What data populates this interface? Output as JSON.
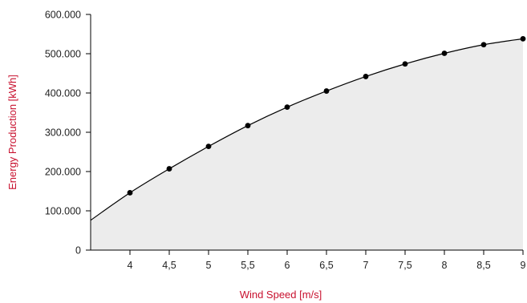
{
  "chart_data": {
    "type": "area",
    "title": "",
    "xlabel": "Wind Speed [m/s]",
    "ylabel": "Energy Production [kWh]",
    "xlim": [
      3.5,
      9
    ],
    "ylim": [
      0,
      600000
    ],
    "x_ticks": [
      "4",
      "4,5",
      "5",
      "5,5",
      "6",
      "6,5",
      "7",
      "7,5",
      "8",
      "8,5",
      "9"
    ],
    "x_tick_values": [
      4,
      4.5,
      5,
      5.5,
      6,
      6.5,
      7,
      7.5,
      8,
      8.5,
      9
    ],
    "y_ticks": [
      "0",
      "100.000",
      "200.000",
      "300.000",
      "400.000",
      "500.000",
      "600.000"
    ],
    "y_tick_values": [
      0,
      100000,
      200000,
      300000,
      400000,
      500000,
      600000
    ],
    "grid": false,
    "legend": "none",
    "series": [
      {
        "x": [
          4,
          4.5,
          5,
          5.5,
          6,
          6.5,
          7,
          7.5,
          8,
          8.5,
          9
        ],
        "values": [
          146000,
          207000,
          264000,
          317000,
          364000,
          405000,
          442000,
          474000,
          501000,
          523000,
          538000
        ]
      }
    ],
    "curve_start": {
      "x": 3.5,
      "y": 76000
    },
    "colors": {
      "axis_title": "#c8102e",
      "area_fill": "#ececec",
      "line": "#000000",
      "marker": "#000000",
      "axis": "#000000",
      "tick_text": "#222222"
    }
  }
}
